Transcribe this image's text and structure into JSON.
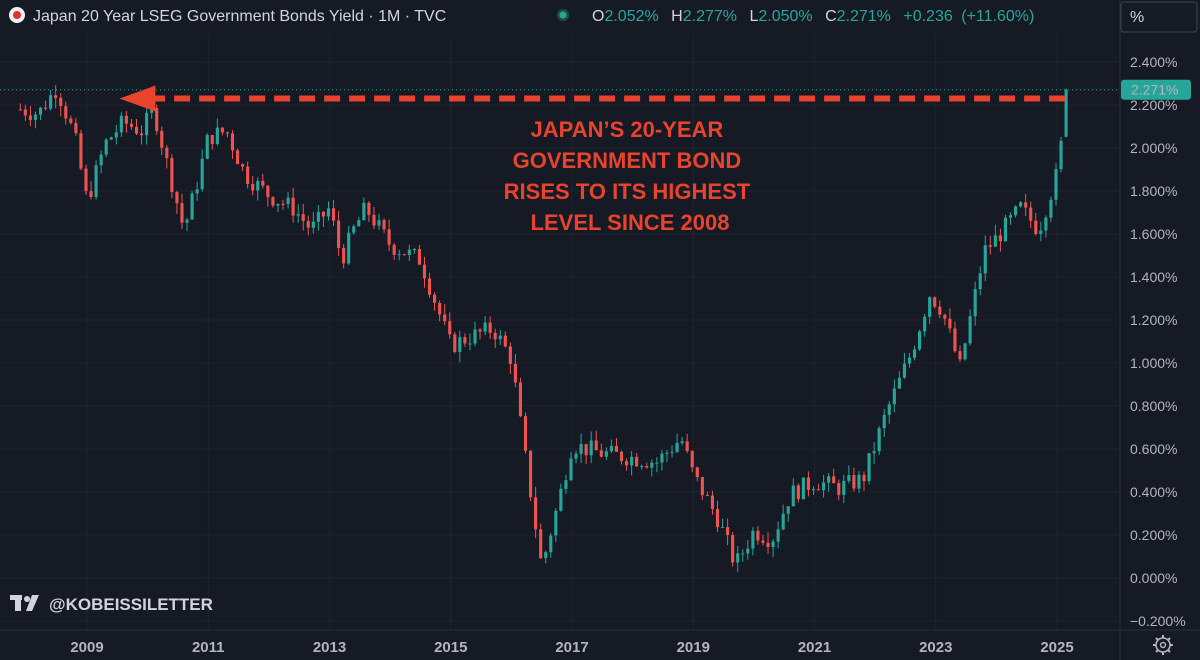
{
  "header": {
    "symbol_title": "Japan 20 Year LSEG Government Bonds Yield",
    "sep1": " · ",
    "interval": "1M",
    "sep2": " · ",
    "source": "TVC",
    "o_label": "O",
    "o_value": "2.052%",
    "h_label": "H",
    "h_value": "2.277%",
    "l_label": "L",
    "l_value": "2.050%",
    "c_label": "C",
    "c_value": "2.271%",
    "change": "+0.236",
    "change_pct": "(+11.60%)",
    "unit_button": "%"
  },
  "price_badge": "2.271%",
  "watermark": "@KOBEISSILETTER",
  "colors": {
    "background": "#161a25",
    "up": "#26a69a",
    "down": "#ef5350",
    "annotation": "#e8432c",
    "badge": "#26a69a",
    "text": "#b2b5be"
  },
  "icons": {
    "symbol_logo": "japan-flag-icon",
    "market_status": "market-open-dot-icon",
    "settings": "gear-icon",
    "brand": "tradingview-logo-icon"
  },
  "chart_data": {
    "type": "candlestick",
    "title": "Japan 20 Year LSEG Government Bonds Yield",
    "interval": "1M",
    "y_unit": "%",
    "ylim": [
      -0.2,
      2.4
    ],
    "y_ticks": [
      "2.400%",
      "2.200%",
      "2.000%",
      "1.800%",
      "1.600%",
      "1.400%",
      "1.200%",
      "1.000%",
      "0.800%",
      "0.600%",
      "0.400%",
      "0.200%",
      "0.000%",
      "−0.200%"
    ],
    "y_tick_values": [
      2.4,
      2.2,
      2.0,
      1.8,
      1.6,
      1.4,
      1.2,
      1.0,
      0.8,
      0.6,
      0.4,
      0.2,
      0.0,
      -0.2
    ],
    "x_ticks": [
      "2009",
      "2011",
      "2013",
      "2015",
      "2017",
      "2019",
      "2021",
      "2023",
      "2025"
    ],
    "x_tick_years": [
      2009,
      2011,
      2013,
      2015,
      2017,
      2019,
      2021,
      2023,
      2025
    ],
    "x_range_years": [
      2007.9,
      2026.3
    ],
    "last_close": 2.271,
    "yield_path": [
      {
        "year": 2007.9,
        "yield": 2.18
      },
      {
        "year": 2008.2,
        "yield": 2.16
      },
      {
        "year": 2008.5,
        "yield": 2.28
      },
      {
        "year": 2008.8,
        "yield": 2.05
      },
      {
        "year": 2009.0,
        "yield": 1.75
      },
      {
        "year": 2009.3,
        "yield": 2.02
      },
      {
        "year": 2009.6,
        "yield": 2.12
      },
      {
        "year": 2009.9,
        "yield": 2.08
      },
      {
        "year": 2010.1,
        "yield": 2.18
      },
      {
        "year": 2010.3,
        "yield": 1.95
      },
      {
        "year": 2010.6,
        "yield": 1.62
      },
      {
        "year": 2010.8,
        "yield": 1.82
      },
      {
        "year": 2011.0,
        "yield": 2.05
      },
      {
        "year": 2011.3,
        "yield": 2.08
      },
      {
        "year": 2011.6,
        "yield": 1.88
      },
      {
        "year": 2012.0,
        "yield": 1.78
      },
      {
        "year": 2012.4,
        "yield": 1.72
      },
      {
        "year": 2012.7,
        "yield": 1.62
      },
      {
        "year": 2013.0,
        "yield": 1.72
      },
      {
        "year": 2013.2,
        "yield": 1.48
      },
      {
        "year": 2013.4,
        "yield": 1.62
      },
      {
        "year": 2013.6,
        "yield": 1.72
      },
      {
        "year": 2014.0,
        "yield": 1.55
      },
      {
        "year": 2014.5,
        "yield": 1.48
      },
      {
        "year": 2015.0,
        "yield": 1.08
      },
      {
        "year": 2015.3,
        "yield": 1.12
      },
      {
        "year": 2015.7,
        "yield": 1.16
      },
      {
        "year": 2016.0,
        "yield": 1.02
      },
      {
        "year": 2016.2,
        "yield": 0.62
      },
      {
        "year": 2016.5,
        "yield": 0.05
      },
      {
        "year": 2016.8,
        "yield": 0.38
      },
      {
        "year": 2017.0,
        "yield": 0.62
      },
      {
        "year": 2017.5,
        "yield": 0.58
      },
      {
        "year": 2018.0,
        "yield": 0.56
      },
      {
        "year": 2018.4,
        "yield": 0.54
      },
      {
        "year": 2018.8,
        "yield": 0.65
      },
      {
        "year": 2019.0,
        "yield": 0.48
      },
      {
        "year": 2019.4,
        "yield": 0.28
      },
      {
        "year": 2019.7,
        "yield": 0.06
      },
      {
        "year": 2020.0,
        "yield": 0.22
      },
      {
        "year": 2020.3,
        "yield": 0.18
      },
      {
        "year": 2020.6,
        "yield": 0.39
      },
      {
        "year": 2021.0,
        "yield": 0.45
      },
      {
        "year": 2021.4,
        "yield": 0.42
      },
      {
        "year": 2021.8,
        "yield": 0.46
      },
      {
        "year": 2022.2,
        "yield": 0.78
      },
      {
        "year": 2022.6,
        "yield": 1.05
      },
      {
        "year": 2022.9,
        "yield": 1.32
      },
      {
        "year": 2023.1,
        "yield": 1.25
      },
      {
        "year": 2023.4,
        "yield": 0.98
      },
      {
        "year": 2023.8,
        "yield": 1.52
      },
      {
        "year": 2024.0,
        "yield": 1.58
      },
      {
        "year": 2024.4,
        "yield": 1.72
      },
      {
        "year": 2024.7,
        "yield": 1.62
      },
      {
        "year": 2025.0,
        "yield": 1.88
      },
      {
        "year": 2025.2,
        "yield": 2.271
      }
    ],
    "annotation": {
      "lines": [
        "JAPAN’S 20-YEAR",
        "GOVERNMENT BOND",
        "RISES TO ITS HIGHEST",
        "LEVEL SINCE 2008"
      ],
      "arrow_level": 2.23,
      "arrow_start_year": 2025.2,
      "arrow_end_year": 2009.7,
      "color": "#e8432c"
    }
  }
}
